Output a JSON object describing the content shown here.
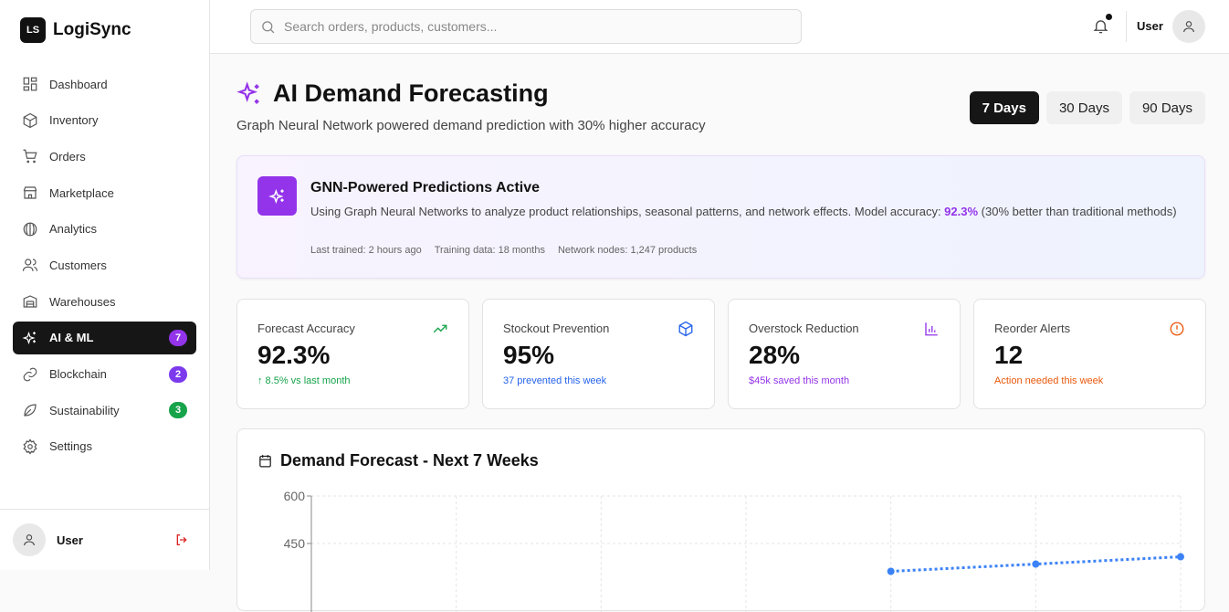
{
  "app": {
    "logo_initials": "LS",
    "name": "LogiSync"
  },
  "sidebar": {
    "items": [
      {
        "label": "Dashboard",
        "icon": "dashboard-icon"
      },
      {
        "label": "Inventory",
        "icon": "box-icon"
      },
      {
        "label": "Orders",
        "icon": "cart-icon"
      },
      {
        "label": "Marketplace",
        "icon": "store-icon"
      },
      {
        "label": "Analytics",
        "icon": "analytics-icon"
      },
      {
        "label": "Customers",
        "icon": "users-icon"
      },
      {
        "label": "Warehouses",
        "icon": "warehouse-icon"
      },
      {
        "label": "AI & ML",
        "icon": "sparkles-icon",
        "badge": "7",
        "badge_color": "#9333ea",
        "active": true
      },
      {
        "label": "Blockchain",
        "icon": "link-icon",
        "badge": "2",
        "badge_color": "#7c3aed"
      },
      {
        "label": "Sustainability",
        "icon": "leaf-icon",
        "badge": "3",
        "badge_color": "#16a34a"
      },
      {
        "label": "Settings",
        "icon": "gear-icon"
      }
    ],
    "user": "User"
  },
  "header": {
    "search_placeholder": "Search orders, products, customers...",
    "user": "User"
  },
  "page": {
    "title": "AI Demand Forecasting",
    "subtitle": "Graph Neural Network powered demand prediction with 30% higher accuracy",
    "ranges": [
      "7 Days",
      "30 Days",
      "90 Days"
    ],
    "selected_range": "7 Days"
  },
  "banner": {
    "title": "GNN-Powered Predictions Active",
    "text_before": "Using Graph Neural Networks to analyze product relationships, seasonal patterns, and network effects. Model accuracy: ",
    "accuracy": "92.3%",
    "text_after": " (30% better than traditional methods)",
    "meta": [
      "Last trained: 2 hours ago",
      "Training data: 18 months",
      "Network nodes: 1,247 products"
    ]
  },
  "cards": [
    {
      "label": "Forecast Accuracy",
      "value": "92.3%",
      "sub": "↑ 8.5% vs last month",
      "color": "#16a34a",
      "icon": "trending-up-icon"
    },
    {
      "label": "Stockout Prevention",
      "value": "95%",
      "sub": "37 prevented this week",
      "color": "#2563eb",
      "icon": "box-icon"
    },
    {
      "label": "Overstock Reduction",
      "value": "28%",
      "sub": "$45k saved this month",
      "color": "#9333ea",
      "icon": "bar-chart-icon"
    },
    {
      "label": "Reorder Alerts",
      "value": "12",
      "sub": "Action needed this week",
      "color": "#ea580c",
      "icon": "alert-circle-icon"
    }
  ],
  "chart_data": {
    "type": "line",
    "title": "Demand Forecast - Next 7 Weeks",
    "y_ticks": [
      "600",
      "450"
    ],
    "ylim": [
      0,
      600
    ],
    "grid": true,
    "series": [
      {
        "style": "dotted",
        "color": "#3b82f6",
        "points": [
          {
            "week": 5,
            "value": 362
          },
          {
            "week": 6,
            "value": 385
          },
          {
            "week": 7,
            "value": 408
          }
        ]
      }
    ]
  }
}
